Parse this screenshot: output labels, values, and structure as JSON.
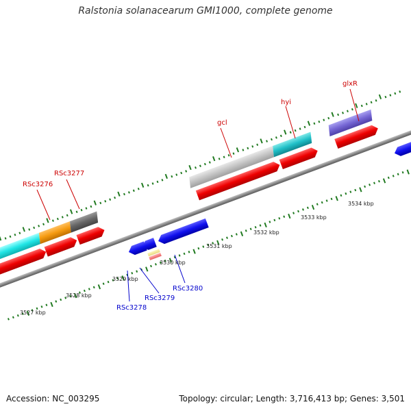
{
  "title": "Ralstonia solanacearum GMI1000, complete genome",
  "footer": {
    "accession": "Accession: NC_003295",
    "summary": "Topology: circular; Length: 3,716,413 bp; Genes: 3,501"
  },
  "colors": {
    "forward_label": "#cc0000",
    "reverse_label": "#0000cc",
    "ticks": "#207a20",
    "backbone": "#8a8a8a"
  },
  "scale": {
    "tick_labels": [
      "3527 kbp",
      "3528 kbp",
      "3529 kbp",
      "3530 kbp",
      "3531 kbp",
      "3532 kbp",
      "3533 kbp",
      "3534 kbp"
    ]
  },
  "features": {
    "forward_labels": [
      "RSc3276",
      "RSc3277",
      "gcl",
      "hyi",
      "glxR"
    ],
    "reverse_labels": [
      "RSc3278",
      "RSc3279",
      "RSc3280"
    ]
  }
}
